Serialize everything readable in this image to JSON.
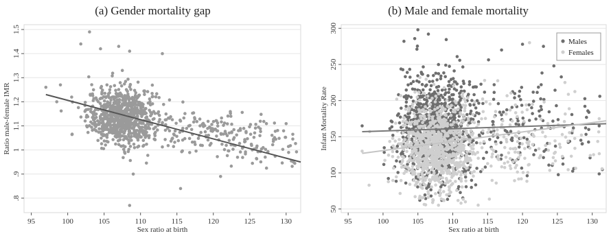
{
  "chart_data": [
    {
      "type": "scatter",
      "title": "(a) Gender mortality gap",
      "xlabel": "Sex ratio at birth",
      "ylabel": "Ratio male-female IMR",
      "xlim": [
        94,
        132
      ],
      "ylim": [
        0.74,
        1.52
      ],
      "xticks": [
        95,
        100,
        105,
        110,
        115,
        120,
        125,
        130
      ],
      "yticks": [
        0.8,
        0.9,
        1.0,
        1.1,
        1.2,
        1.3,
        1.4,
        1.5
      ],
      "ytick_labels": [
        ".8",
        ".9",
        "1",
        "1.1",
        "1.2",
        "1.3",
        "1.4",
        "1.5"
      ],
      "grid": true,
      "series": [
        {
          "color": "#9a9a9a",
          "cloud": [
            {
              "n": 780,
              "cx": 107.5,
              "sx": 2.4,
              "cy": 1.14,
              "sy": 0.06,
              "ylo": 0.93,
              "yhi": 1.42
            },
            {
              "n": 160,
              "cx": 118,
              "sx": 5.5,
              "cy": 1.08,
              "sy": 0.045,
              "ylo": 0.9,
              "yhi": 1.2
            },
            {
              "n": 70,
              "cx": 126,
              "sx": 3.5,
              "cy": 1.01,
              "sy": 0.045,
              "ylo": 0.9,
              "yhi": 1.12
            }
          ],
          "points": [
            [
              103,
              1.49
            ],
            [
              101.8,
              1.44
            ],
            [
              104.5,
              1.42
            ],
            [
              107,
              1.43
            ],
            [
              108.5,
              1.41
            ],
            [
              113,
              1.4
            ],
            [
              108.5,
              0.77
            ],
            [
              115.5,
              0.84
            ],
            [
              109,
              0.9
            ],
            [
              121,
              0.89
            ],
            [
              97,
              1.26
            ],
            [
              99,
              1.27
            ],
            [
              98.5,
              1.2
            ],
            [
              131,
              0.95
            ]
          ]
        }
      ],
      "fit": {
        "color": "#555555",
        "x": [
          97,
          132
        ],
        "y": [
          1.23,
          0.95
        ]
      }
    },
    {
      "type": "scatter",
      "title": "(b) Male and female mortality",
      "xlabel": "Sex ratio at birth",
      "ylabel": "Infant Mortality Rate",
      "xlim": [
        94,
        132
      ],
      "ylim": [
        45,
        305
      ],
      "xticks": [
        95,
        100,
        105,
        110,
        115,
        120,
        125,
        130
      ],
      "yticks": [
        50,
        100,
        150,
        200,
        250,
        300
      ],
      "ytick_labels": [
        "50",
        "100",
        "150",
        "200",
        "250",
        "300"
      ],
      "grid": true,
      "legend_position": "top-right",
      "series": [
        {
          "name": "Males",
          "color": "#6e6e6e",
          "cloud": [
            {
              "n": 900,
              "cx": 107.5,
              "sx": 2.6,
              "cy": 160,
              "sy": 38,
              "ylo": 62,
              "yhi": 298
            },
            {
              "n": 170,
              "cx": 119,
              "sx": 6,
              "cy": 165,
              "sy": 35,
              "ylo": 95,
              "yhi": 280
            }
          ],
          "points": [
            [
              105,
              298
            ],
            [
              106.5,
              292
            ],
            [
              103,
              282
            ],
            [
              120,
              278
            ],
            [
              123,
              275
            ],
            [
              124.5,
              248
            ],
            [
              117,
              270
            ],
            [
              97,
              165
            ],
            [
              131,
              165
            ],
            [
              129.5,
              160
            ]
          ]
        },
        {
          "name": "Females",
          "color": "#cfcfcf",
          "cloud": [
            {
              "n": 900,
              "cx": 107.5,
              "sx": 2.6,
              "cy": 135,
              "sy": 32,
              "ylo": 55,
              "yhi": 260
            },
            {
              "n": 170,
              "cx": 119,
              "sx": 6,
              "cy": 145,
              "sy": 30,
              "ylo": 85,
              "yhi": 240
            }
          ],
          "points": [
            [
              98,
              83
            ],
            [
              121,
              280
            ],
            [
              126,
              265
            ],
            [
              97,
              130
            ],
            [
              131,
              175
            ]
          ]
        }
      ],
      "fits": [
        {
          "color": "#777777",
          "x": [
            97,
            132
          ],
          "y": [
            157,
            168
          ]
        },
        {
          "color": "#c4c4c4",
          "x": [
            97,
            132
          ],
          "y": [
            127,
            172
          ]
        }
      ]
    }
  ]
}
